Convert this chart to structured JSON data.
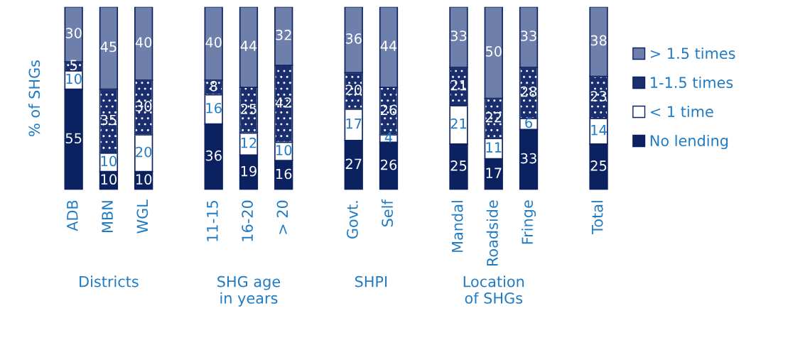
{
  "chart_data": {
    "type": "bar",
    "stacked": true,
    "ylabel": "% of SHGs",
    "categories": [
      "ADB",
      "MBN",
      "WGL",
      null,
      "11-15",
      "16-20",
      "> 20",
      null,
      "Govt.",
      "Self",
      null,
      "Mandal",
      "Roadside",
      "Fringe",
      null,
      "Total"
    ],
    "series": [
      {
        "name": "No lending",
        "color": "#0b2160",
        "values": [
          55,
          10,
          10,
          null,
          36,
          19,
          16,
          null,
          27,
          26,
          null,
          25,
          17,
          33,
          null,
          25
        ]
      },
      {
        "name": "< 1 time",
        "color": "#ffffff",
        "values": [
          10,
          10,
          20,
          null,
          16,
          12,
          10,
          null,
          17,
          4,
          null,
          21,
          11,
          6,
          null,
          14
        ]
      },
      {
        "name": "1-1.5 times",
        "color": "#1a2e6e",
        "values": [
          5,
          35,
          30,
          null,
          8,
          25,
          42,
          null,
          20,
          26,
          null,
          21,
          22,
          28,
          null,
          23
        ]
      },
      {
        "name": "> 1.5 times",
        "color": "#6f7fab",
        "values": [
          30,
          45,
          40,
          null,
          40,
          44,
          32,
          null,
          36,
          44,
          null,
          33,
          50,
          33,
          null,
          38
        ]
      }
    ],
    "annotations": [
      "Districts",
      "SHG age\nin years",
      "SHPI",
      "Location\nof SHGs"
    ],
    "data_labels": true,
    "legend": "right",
    "grid": false
  }
}
